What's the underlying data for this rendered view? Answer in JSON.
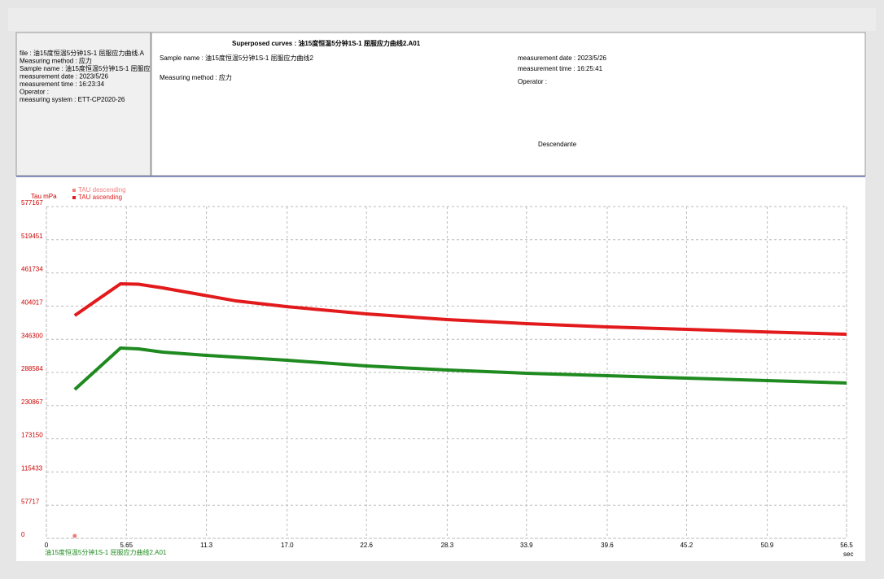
{
  "header": {
    "left_lines": [
      "file : 油15度恒温5分钟1S-1 屈服应力曲线.A",
      "Measuring method : 应力",
      "Sample name : 油15度恒温5分钟1S-1 屈服应",
      "measurement date : 2023/5/26",
      "measurement time : 16:23:34",
      "Operator :",
      "measuring system : ETT-CP2020-26"
    ],
    "title": "Superposed curves : 油15度恒温5分钟1S-1 屈服应力曲线2.A01",
    "sample_name": "Sample name : 油15度恒温5分钟1S-1 屈服应力曲线2",
    "measuring_method": "Measuring method : 应力",
    "measurement_date": "measurement date : 2023/5/26",
    "measurement_time": "measurement time : 16:25:41",
    "operator": "Operator :",
    "mode": "Descendante"
  },
  "chart_data": {
    "type": "line",
    "y_axis_label": "Tau mPa",
    "x_axis_label": "sec",
    "footer": "油15度恒温5分钟1S-1 屈服应力曲线2.A01",
    "xlim": [
      0,
      56.5
    ],
    "ylim": [
      0,
      577167
    ],
    "xticks": [
      0,
      5.65,
      11.3,
      {
        "value": 17,
        "label": "17.0"
      },
      22.6,
      28.3,
      33.9,
      39.6,
      45.2,
      50.9,
      56.5
    ],
    "yticks": [
      0,
      57717,
      115433,
      173150,
      230867,
      288584,
      346300,
      404017,
      461734,
      519451,
      577167
    ],
    "grid": true,
    "series": [
      {
        "name": "TAU descending",
        "color": "#f08080",
        "x": [
          2.0
        ],
        "values": [
          0
        ]
      },
      {
        "name": "TAU ascending",
        "color": "#e31a1c",
        "x": [
          2.0,
          5.23,
          6.5,
          8.2,
          13.4,
          17,
          22.6,
          28.3,
          33.9,
          39.6,
          45.2,
          50.9,
          56.5
        ],
        "values": [
          387600,
          442800,
          442000,
          435700,
          413000,
          403000,
          390400,
          380500,
          373500,
          367800,
          363600,
          359000,
          355000
        ]
      },
      {
        "color": "#1f8a1f",
        "x": [
          2.0,
          5.23,
          6.5,
          8.2,
          11.3,
          17,
          22.6,
          28.3,
          33.9,
          39.6,
          45.2,
          50.9,
          56.5
        ],
        "values": [
          258900,
          331000,
          329600,
          324000,
          318300,
          309800,
          299900,
          292800,
          287200,
          282900,
          278700,
          274400,
          270200
        ]
      }
    ]
  }
}
